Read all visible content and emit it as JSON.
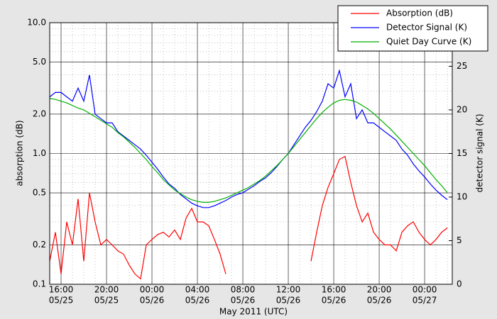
{
  "chart_data": {
    "type": "line",
    "xlabel": "May 2011 (UTC)",
    "ylabel": "absorption (dB)",
    "y2label": "detector signal (K)",
    "ylog": true,
    "grid": true,
    "legend": "upper right",
    "xlim": [
      "2011-05-25T15:00",
      "2011-05-27T02:26"
    ],
    "xticks": [
      {
        "value": "2011-05-25T16:00",
        "label": [
          "16:00",
          "05/25"
        ]
      },
      {
        "value": "2011-05-25T20:00",
        "label": [
          "20:00",
          "05/25"
        ]
      },
      {
        "value": "2011-05-26T00:00",
        "label": [
          "00:00",
          "05/26"
        ]
      },
      {
        "value": "2011-05-26T04:00",
        "label": [
          "04:00",
          "05/26"
        ]
      },
      {
        "value": "2011-05-26T08:00",
        "label": [
          "08:00",
          "05/26"
        ]
      },
      {
        "value": "2011-05-26T12:00",
        "label": [
          "12:00",
          "05/26"
        ]
      },
      {
        "value": "2011-05-26T16:00",
        "label": [
          "16:00",
          "05/26"
        ]
      },
      {
        "value": "2011-05-26T20:00",
        "label": [
          "20:00",
          "05/26"
        ]
      },
      {
        "value": "2011-05-27T00:00",
        "label": [
          "00:00",
          "05/27"
        ]
      }
    ],
    "xminorticks": [
      "2011-05-25T15:00",
      "2011-05-25T17:00",
      "2011-05-25T18:00",
      "2011-05-25T19:00",
      "2011-05-25T21:00",
      "2011-05-25T22:00",
      "2011-05-25T23:00",
      "2011-05-26T01:00",
      "2011-05-26T02:00",
      "2011-05-26T03:00",
      "2011-05-26T05:00",
      "2011-05-26T06:00",
      "2011-05-26T07:00",
      "2011-05-26T09:00",
      "2011-05-26T10:00",
      "2011-05-26T11:00",
      "2011-05-26T13:00",
      "2011-05-26T14:00",
      "2011-05-26T15:00",
      "2011-05-26T17:00",
      "2011-05-26T18:00",
      "2011-05-26T19:00",
      "2011-05-26T21:00",
      "2011-05-26T22:00",
      "2011-05-26T23:00",
      "2011-05-27T01:00",
      "2011-05-27T02:00"
    ],
    "ylim": [
      0.1,
      10
    ],
    "yticks": [
      0.1,
      0.2,
      0.5,
      {
        "value": 1,
        "label": "1.0"
      },
      {
        "value": 2,
        "label": "2.0"
      },
      {
        "value": 5,
        "label": "5.0"
      },
      {
        "value": 10,
        "label": "10.0"
      }
    ],
    "yminorticks": [
      0.3,
      0.4,
      0.6,
      0.7,
      0.8,
      0.9,
      3,
      4,
      6,
      7,
      8,
      9
    ],
    "y2lim": [
      0,
      30
    ],
    "y2ticks": [
      0,
      5,
      10,
      15,
      20,
      25
    ],
    "x": [
      "2011-05-25T15:00",
      "2011-05-25T15:30",
      "2011-05-25T16:00",
      "2011-05-25T16:30",
      "2011-05-25T17:00",
      "2011-05-25T17:30",
      "2011-05-25T18:00",
      "2011-05-25T18:30",
      "2011-05-25T19:00",
      "2011-05-25T19:30",
      "2011-05-25T20:00",
      "2011-05-25T20:30",
      "2011-05-25T21:00",
      "2011-05-25T21:30",
      "2011-05-25T22:00",
      "2011-05-25T22:30",
      "2011-05-25T23:00",
      "2011-05-25T23:30",
      "2011-05-26T00:00",
      "2011-05-26T00:30",
      "2011-05-26T01:00",
      "2011-05-26T01:30",
      "2011-05-26T02:00",
      "2011-05-26T02:30",
      "2011-05-26T03:00",
      "2011-05-26T03:30",
      "2011-05-26T04:00",
      "2011-05-26T04:30",
      "2011-05-26T05:00",
      "2011-05-26T05:30",
      "2011-05-26T06:00",
      "2011-05-26T06:30",
      "2011-05-26T07:00",
      "2011-05-26T07:30",
      "2011-05-26T08:00",
      "2011-05-26T08:30",
      "2011-05-26T09:00",
      "2011-05-26T09:30",
      "2011-05-26T10:00",
      "2011-05-26T10:30",
      "2011-05-26T11:00",
      "2011-05-26T11:30",
      "2011-05-26T12:00",
      "2011-05-26T12:30",
      "2011-05-26T13:00",
      "2011-05-26T13:30",
      "2011-05-26T14:00",
      "2011-05-26T14:30",
      "2011-05-26T15:00",
      "2011-05-26T15:30",
      "2011-05-26T16:00",
      "2011-05-26T16:30",
      "2011-05-26T17:00",
      "2011-05-26T17:30",
      "2011-05-26T18:00",
      "2011-05-26T18:30",
      "2011-05-26T19:00",
      "2011-05-26T19:30",
      "2011-05-26T20:00",
      "2011-05-26T20:30",
      "2011-05-26T21:00",
      "2011-05-26T21:30",
      "2011-05-26T22:00",
      "2011-05-26T22:30",
      "2011-05-26T23:00",
      "2011-05-26T23:30",
      "2011-05-27T00:00",
      "2011-05-27T00:30",
      "2011-05-27T01:00",
      "2011-05-27T01:30",
      "2011-05-27T02:00"
    ],
    "series": [
      {
        "name": "Absorption (dB)",
        "color": "#ff0000",
        "axis": "y",
        "values": [
          0.15,
          0.25,
          0.12,
          0.3,
          0.2,
          0.45,
          0.15,
          0.5,
          0.3,
          0.2,
          0.22,
          0.2,
          0.18,
          0.17,
          0.14,
          0.12,
          0.11,
          0.2,
          0.22,
          0.24,
          0.25,
          0.23,
          0.26,
          0.22,
          0.32,
          0.38,
          0.3,
          0.3,
          0.28,
          0.22,
          0.17,
          0.12,
          null,
          null,
          null,
          null,
          null,
          null,
          null,
          null,
          null,
          null,
          null,
          null,
          null,
          null,
          0.15,
          0.25,
          0.4,
          0.55,
          0.7,
          0.9,
          0.95,
          0.6,
          0.4,
          0.3,
          0.35,
          0.25,
          0.22,
          0.2,
          0.2,
          0.18,
          0.25,
          0.28,
          0.3,
          0.25,
          0.22,
          0.2,
          0.22,
          0.25,
          0.27
        ]
      },
      {
        "name": "Detector Signal (K)",
        "color": "#0000ff",
        "axis": "y2",
        "values": [
          21.5,
          22,
          22,
          21.5,
          21,
          22.5,
          21,
          24,
          19.5,
          19,
          18.5,
          18.5,
          17.5,
          17,
          16.5,
          16,
          15.5,
          14.8,
          14,
          13.2,
          12.3,
          11.5,
          11,
          10.3,
          9.8,
          9.3,
          9,
          8.8,
          8.8,
          9,
          9.3,
          9.6,
          10,
          10.3,
          10.5,
          10.9,
          11.3,
          11.8,
          12.2,
          12.8,
          13.5,
          14.3,
          15,
          16,
          17,
          18,
          18.8,
          19.8,
          21,
          23,
          22.5,
          24.5,
          21.5,
          23,
          19,
          20,
          18.5,
          18.5,
          18,
          17.5,
          17,
          16.5,
          15.5,
          14.8,
          13.8,
          13,
          12.3,
          11.5,
          10.8,
          10.2,
          9.7
        ]
      },
      {
        "name": "Quiet Day Curve (K)",
        "color": "#00b000",
        "axis": "y2",
        "values": [
          21.3,
          21.2,
          21,
          20.8,
          20.5,
          20.2,
          20,
          19.6,
          19.2,
          18.8,
          18.4,
          18,
          17.4,
          16.9,
          16.3,
          15.7,
          15,
          14.3,
          13.5,
          12.8,
          12,
          11.4,
          10.8,
          10.4,
          10,
          9.7,
          9.5,
          9.4,
          9.4,
          9.5,
          9.7,
          9.9,
          10.2,
          10.5,
          10.8,
          11.1,
          11.5,
          11.9,
          12.4,
          13,
          13.6,
          14.3,
          15,
          15.8,
          16.6,
          17.4,
          18.2,
          19,
          19.7,
          20.3,
          20.8,
          21.1,
          21.2,
          21.1,
          20.9,
          20.5,
          20.1,
          19.6,
          19,
          18.4,
          17.8,
          17.1,
          16.4,
          15.7,
          15,
          14.3,
          13.6,
          12.8,
          12,
          11.3,
          10.5
        ]
      }
    ]
  }
}
